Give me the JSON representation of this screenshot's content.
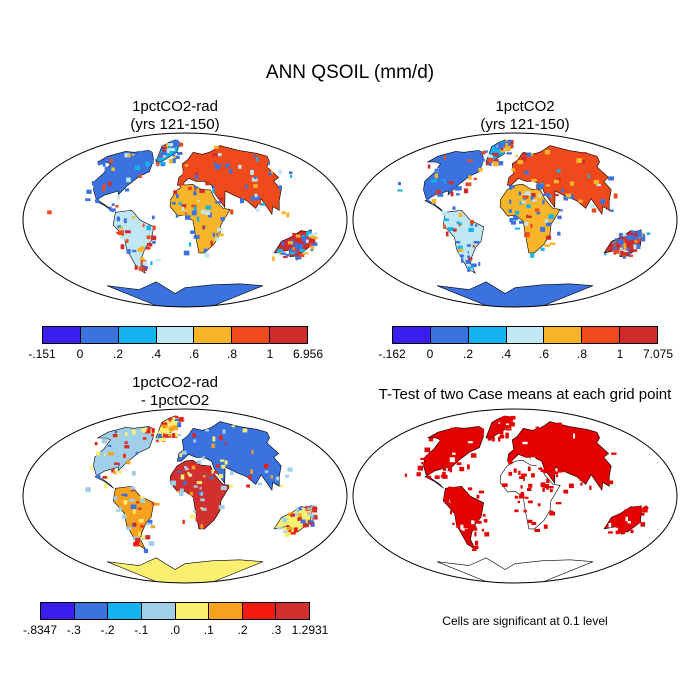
{
  "title": "ANN QSOIL (mm/d)",
  "panels": [
    {
      "title_line1": "1pctCO2-rad",
      "title_line2": "(yrs 121-150)",
      "colorbar": {
        "colors": [
          "#3a1ef0",
          "#3b72e0",
          "#13b3ef",
          "#bfe7f4",
          "#f7b52a",
          "#ef4a1c",
          "#d02b2b"
        ],
        "labels": [
          "-.151",
          "0",
          ".2",
          ".4",
          ".6",
          ".8",
          "1",
          "6.956"
        ]
      }
    },
    {
      "title_line1": "1pctCO2",
      "title_line2": "(yrs 121-150)",
      "colorbar": {
        "colors": [
          "#3a1ef0",
          "#3b72e0",
          "#13b3ef",
          "#bfe7f4",
          "#f7b52a",
          "#ef4a1c",
          "#d02b2b"
        ],
        "labels": [
          "-.162",
          "0",
          ".2",
          ".4",
          ".6",
          ".8",
          "1",
          "7.075"
        ]
      }
    },
    {
      "title_line1": "1pctCO2-rad",
      "title_line2": "- 1pctCO2",
      "colorbar": {
        "colors": [
          "#3a1ef0",
          "#3b72e0",
          "#13b3ef",
          "#9fcfe9",
          "#fbef70",
          "#f7a21f",
          "#f31b0d",
          "#d22f2f"
        ],
        "labels": [
          "-.8347",
          "-.3",
          "-.2",
          "-.1",
          ".0",
          ".1",
          ".2",
          ".3",
          "1.2931"
        ]
      }
    },
    {
      "title_line1": "T-Test of two Case means at each grid point",
      "note": "Cells are significant at 0.1 level",
      "significance_color": "#e50000"
    }
  ]
}
